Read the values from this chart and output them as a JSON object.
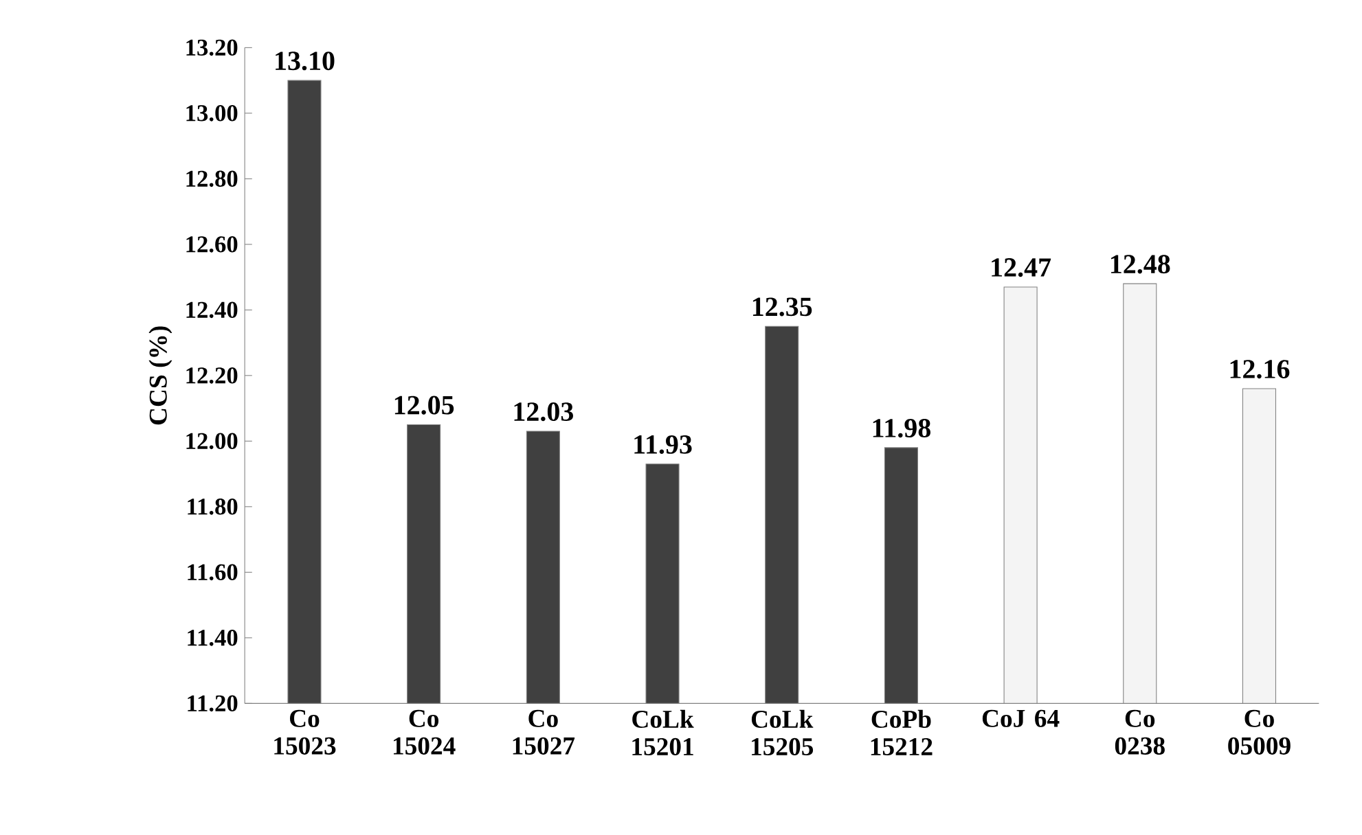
{
  "chart_data": {
    "type": "bar",
    "ylabel": "CCS (%)",
    "categories": [
      "Co 15023",
      "Co 15024",
      "Co 15027",
      "CoLk 15201",
      "CoLk 15205",
      "CoPb 15212",
      "CoJ 64",
      "Co 0238",
      "Co 05009"
    ],
    "values": [
      13.1,
      12.05,
      12.03,
      11.93,
      12.35,
      11.98,
      12.47,
      12.48,
      12.16
    ],
    "value_labels": [
      "13.10",
      "12.05",
      "12.03",
      "11.93",
      "12.35",
      "11.98",
      "12.47",
      "12.48",
      "12.16"
    ],
    "colors": [
      "#404040",
      "#404040",
      "#404040",
      "#404040",
      "#404040",
      "#404040",
      "#f4f4f4",
      "#f4f4f4",
      "#f4f4f4"
    ],
    "ylim": [
      11.2,
      13.2
    ],
    "yticks": [
      {
        "value": 11.2,
        "label": "11.20"
      },
      {
        "value": 11.4,
        "label": "11.40"
      },
      {
        "value": 11.6,
        "label": "11.60"
      },
      {
        "value": 11.8,
        "label": "11.80"
      },
      {
        "value": 12.0,
        "label": "12.00"
      },
      {
        "value": 12.2,
        "label": "12.20"
      },
      {
        "value": 12.4,
        "label": "12.40"
      },
      {
        "value": 12.6,
        "label": "12.60"
      },
      {
        "value": 12.8,
        "label": "12.80"
      },
      {
        "value": 13.0,
        "label": "13.00"
      },
      {
        "value": 13.2,
        "label": "13.20"
      }
    ]
  }
}
